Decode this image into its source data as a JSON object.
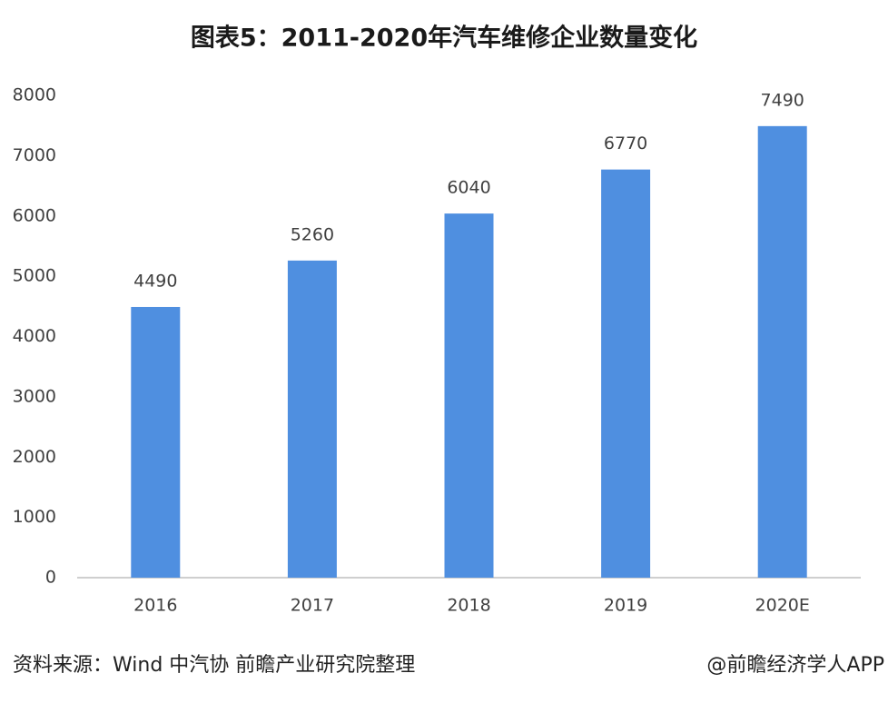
{
  "chart_data": {
    "type": "bar",
    "title": "图表5：2011-2020年汽车维修企业数量变化",
    "categories": [
      "2016",
      "2017",
      "2018",
      "2019",
      "2020E"
    ],
    "values": [
      4490,
      5260,
      6040,
      6770,
      7490
    ],
    "color": "#4f8fe0",
    "ylim": [
      0,
      8000
    ],
    "yticks": [
      0,
      1000,
      2000,
      3000,
      4000,
      5000,
      6000,
      7000,
      8000
    ],
    "grid": false,
    "source": "资料来源：Wind 中汽协 前瞻产业研究院整理",
    "credit": "@前瞻经济学人APP"
  }
}
